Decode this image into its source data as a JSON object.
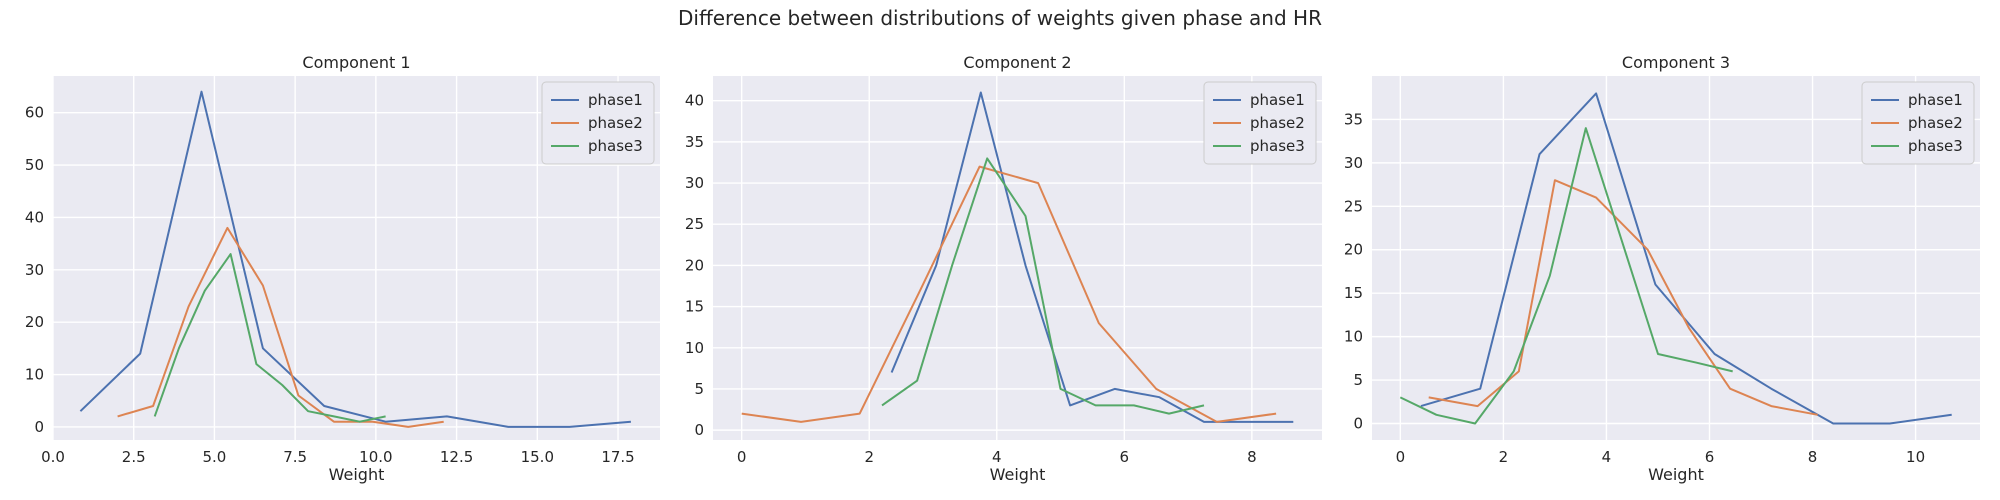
{
  "suptitle": "Difference between distributions of weights given phase and HR",
  "colors": {
    "phase1": "#4c72b0",
    "phase2": "#dd8452",
    "phase3": "#55a868",
    "plot_bg": "#eaeaf2",
    "grid": "#ffffff"
  },
  "chart_data": [
    {
      "type": "line",
      "title": "Component 1",
      "xlabel": "Weight",
      "ylabel": "",
      "xlim": [
        0,
        18.8
      ],
      "ylim": [
        -2.5,
        67
      ],
      "xticks": [
        0.0,
        2.5,
        5.0,
        7.5,
        10.0,
        12.5,
        15.0,
        17.5
      ],
      "xtick_labels": [
        "0.0",
        "2.5",
        "5.0",
        "7.5",
        "10.0",
        "12.5",
        "15.0",
        "17.5"
      ],
      "yticks": [
        0,
        10,
        20,
        30,
        40,
        50,
        60
      ],
      "ytick_labels": [
        "0",
        "10",
        "20",
        "30",
        "40",
        "50",
        "60"
      ],
      "legend": "top-right",
      "series": [
        {
          "name": "phase1",
          "x": [
            0.85,
            2.7,
            4.6,
            6.5,
            8.4,
            10.3,
            12.2,
            14.1,
            16.0,
            17.9
          ],
          "y": [
            3,
            14,
            64,
            15,
            4,
            1,
            2,
            0,
            0,
            1
          ]
        },
        {
          "name": "phase2",
          "x": [
            2.0,
            3.1,
            4.2,
            5.4,
            6.5,
            7.6,
            8.7,
            9.9,
            11.0,
            12.1
          ],
          "y": [
            2,
            4,
            23,
            38,
            27,
            6,
            1,
            1,
            0,
            1
          ]
        },
        {
          "name": "phase3",
          "x": [
            3.15,
            3.9,
            4.7,
            5.5,
            6.3,
            7.1,
            7.9,
            8.7,
            9.5,
            10.3
          ],
          "y": [
            2,
            15,
            26,
            33,
            12,
            8,
            3,
            2,
            1,
            2
          ]
        }
      ]
    },
    {
      "type": "line",
      "title": "Component 2",
      "xlabel": "Weight",
      "ylabel": "",
      "xlim": [
        -0.45,
        9.1
      ],
      "ylim": [
        -1.2,
        43
      ],
      "xticks": [
        0,
        2,
        4,
        6,
        8
      ],
      "xtick_labels": [
        "0",
        "2",
        "4",
        "6",
        "8"
      ],
      "yticks": [
        0,
        5,
        10,
        15,
        20,
        25,
        30,
        35,
        40
      ],
      "ytick_labels": [
        "0",
        "5",
        "10",
        "15",
        "20",
        "25",
        "30",
        "35",
        "40"
      ],
      "legend": "top-right",
      "series": [
        {
          "name": "phase1",
          "x": [
            2.35,
            3.05,
            3.75,
            4.45,
            5.15,
            5.85,
            6.55,
            7.25,
            7.95,
            8.65
          ],
          "y": [
            7,
            20,
            41,
            20,
            3,
            5,
            4,
            1,
            1,
            1
          ]
        },
        {
          "name": "phase2",
          "x": [
            0.0,
            0.93,
            1.85,
            2.8,
            3.73,
            4.65,
            5.6,
            6.5,
            7.45,
            8.38
          ],
          "y": [
            2,
            1,
            2,
            17,
            32,
            30,
            13,
            5,
            1,
            2
          ]
        },
        {
          "name": "phase3",
          "x": [
            2.2,
            2.75,
            3.3,
            3.85,
            4.45,
            5.0,
            5.55,
            6.15,
            6.7,
            7.25
          ],
          "y": [
            3,
            6,
            20,
            33,
            26,
            5,
            3,
            3,
            2,
            3
          ]
        }
      ]
    },
    {
      "type": "line",
      "title": "Component 3",
      "xlabel": "Weight",
      "ylabel": "",
      "xlim": [
        -0.55,
        11.25
      ],
      "ylim": [
        -1.9,
        40
      ],
      "xticks": [
        0,
        2,
        4,
        6,
        8,
        10
      ],
      "xtick_labels": [
        "0",
        "2",
        "4",
        "6",
        "8",
        "10"
      ],
      "yticks": [
        0,
        5,
        10,
        15,
        20,
        25,
        30,
        35
      ],
      "ytick_labels": [
        "0",
        "5",
        "10",
        "15",
        "20",
        "25",
        "30",
        "35"
      ],
      "legend": "top-right",
      "series": [
        {
          "name": "phase1",
          "x": [
            0.4,
            1.55,
            2.7,
            3.8,
            4.95,
            6.1,
            7.2,
            8.4,
            9.5,
            10.7
          ],
          "y": [
            2,
            4,
            31,
            38,
            16,
            8,
            4,
            0,
            0,
            1
          ]
        },
        {
          "name": "phase2",
          "x": [
            0.55,
            1.5,
            2.3,
            3.0,
            3.8,
            4.8,
            5.6,
            6.4,
            7.2,
            8.1
          ],
          "y": [
            3,
            2,
            6,
            28,
            26,
            20,
            11,
            4,
            2,
            1
          ]
        },
        {
          "name": "phase3",
          "x": [
            0.0,
            0.7,
            1.45,
            2.2,
            2.9,
            3.6,
            4.3,
            5.0,
            5.75,
            6.45
          ],
          "y": [
            3,
            1,
            0,
            6,
            17,
            34,
            21,
            8,
            7,
            6
          ]
        }
      ]
    }
  ]
}
